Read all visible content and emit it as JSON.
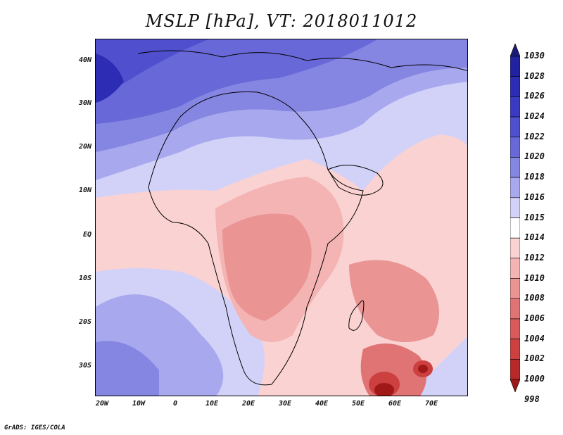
{
  "title": "MSLP [hPa], VT: 2018011012",
  "credit": "GrADS: IGES/COLA",
  "lat_labels": [
    "40N",
    "30N",
    "20N",
    "10N",
    "EQ",
    "10S",
    "20S",
    "30S"
  ],
  "lon_labels": [
    "20W",
    "10W",
    "0",
    "10E",
    "20E",
    "30E",
    "40E",
    "50E",
    "60E",
    "70E"
  ],
  "colorbar": {
    "labels": [
      "1030",
      "1028",
      "1026",
      "1024",
      "1022",
      "1020",
      "1018",
      "1016",
      "1015",
      "1014",
      "1012",
      "1010",
      "1008",
      "1006",
      "1004",
      "1002",
      "1000",
      "998"
    ],
    "colors": [
      "#1a1a78",
      "#2222a0",
      "#2c2cb4",
      "#3a3ac2",
      "#5050ce",
      "#6868d8",
      "#8585e2",
      "#a8a8ee",
      "#d2d2f8",
      "#ffffff",
      "#fbd2d2",
      "#f4b4b4",
      "#ea9494",
      "#e07474",
      "#d85a5a",
      "#cc4040",
      "#b82a2a",
      "#a01818"
    ]
  },
  "icons": {
    "colorbar_top": "triangle-up",
    "colorbar_bottom": "triangle-down"
  }
}
